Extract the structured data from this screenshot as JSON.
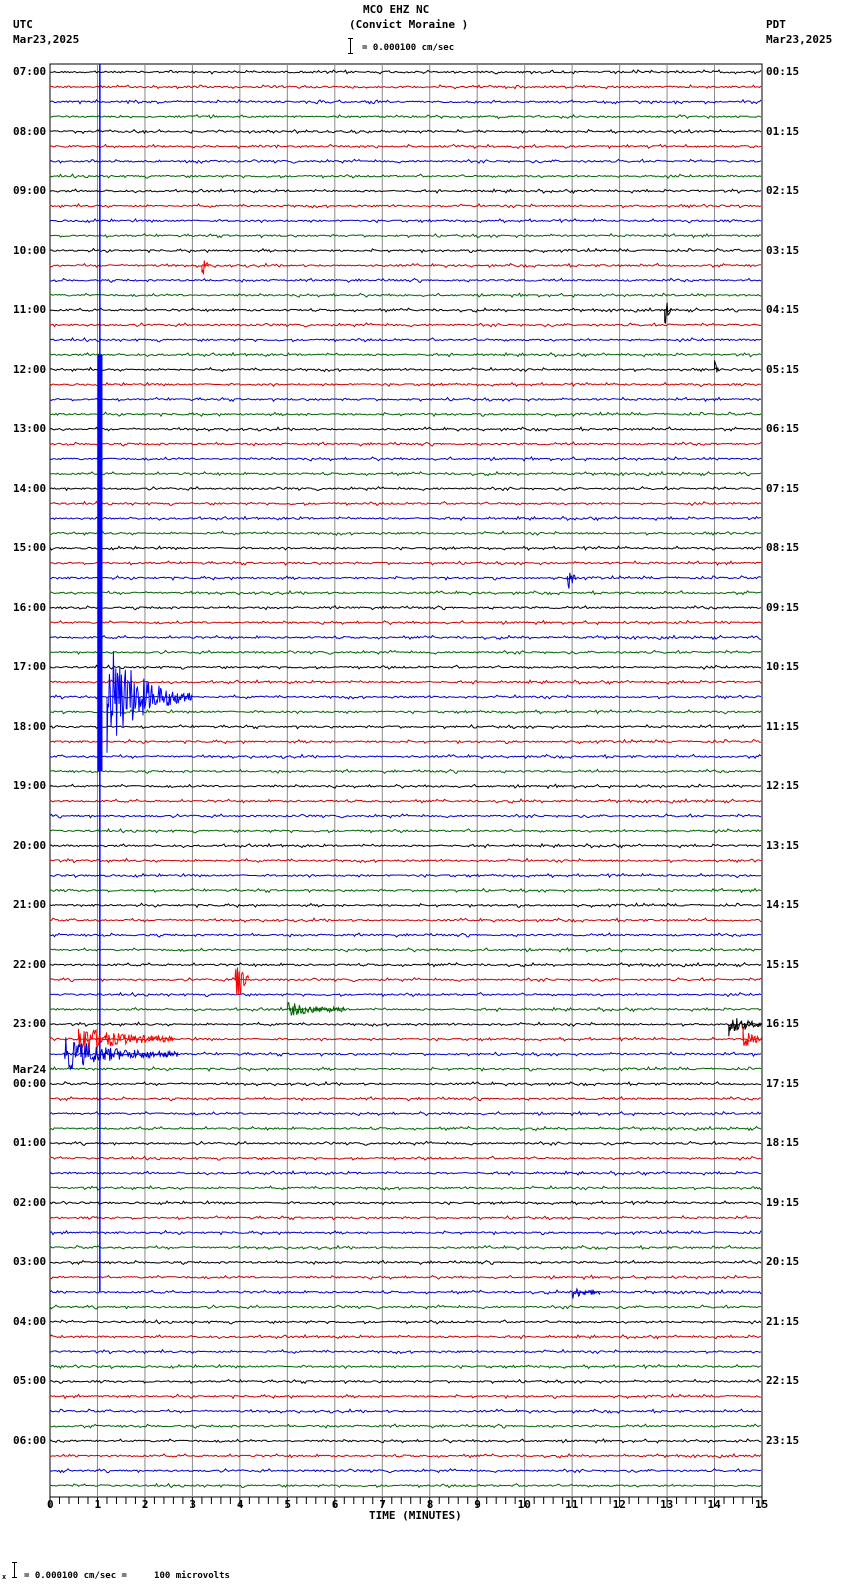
{
  "header": {
    "station": "MCO EHZ NC",
    "location": "(Convict Moraine )",
    "scale_label": "= 0.000100 cm/sec",
    "left_tz": "UTC",
    "left_date": "Mar23,2025",
    "right_tz": "PDT",
    "right_date": "Mar23,2025"
  },
  "footer": {
    "scale_prefix": "x",
    "scale_text": "= 0.000100 cm/sec =     100 microvolts"
  },
  "colors": {
    "trace_cycle": [
      "#000000",
      "#cc0000",
      "#0000cc",
      "#006600"
    ],
    "grid": "#888888",
    "event_blue": "#0000ff",
    "event_red": "#ff0000"
  },
  "chart_data": {
    "type": "line",
    "title": "MCO EHZ NC (Convict Moraine )",
    "xlabel": "TIME (MINUTES)",
    "ylabel": "",
    "x_ticks": [
      "0",
      "1",
      "2",
      "3",
      "4",
      "5",
      "6",
      "7",
      "8",
      "9",
      "10",
      "11",
      "12",
      "13",
      "14",
      "15"
    ],
    "xlim": [
      0,
      15
    ],
    "grid": true,
    "traces_per_hour": 4,
    "trace_interval_minutes": 15,
    "left_labels": [
      {
        "row": 0,
        "text": "07:00"
      },
      {
        "row": 4,
        "text": "08:00"
      },
      {
        "row": 8,
        "text": "09:00"
      },
      {
        "row": 12,
        "text": "10:00"
      },
      {
        "row": 16,
        "text": "11:00"
      },
      {
        "row": 20,
        "text": "12:00"
      },
      {
        "row": 24,
        "text": "13:00"
      },
      {
        "row": 28,
        "text": "14:00"
      },
      {
        "row": 32,
        "text": "15:00"
      },
      {
        "row": 36,
        "text": "16:00"
      },
      {
        "row": 40,
        "text": "17:00"
      },
      {
        "row": 44,
        "text": "18:00"
      },
      {
        "row": 48,
        "text": "19:00"
      },
      {
        "row": 52,
        "text": "20:00"
      },
      {
        "row": 56,
        "text": "21:00"
      },
      {
        "row": 60,
        "text": "22:00"
      },
      {
        "row": 64,
        "text": "23:00"
      },
      {
        "row": 68,
        "text": "00:00",
        "date": "Mar24"
      },
      {
        "row": 72,
        "text": "01:00"
      },
      {
        "row": 76,
        "text": "02:00"
      },
      {
        "row": 80,
        "text": "03:00"
      },
      {
        "row": 84,
        "text": "04:00"
      },
      {
        "row": 88,
        "text": "05:00"
      },
      {
        "row": 92,
        "text": "06:00"
      }
    ],
    "right_labels": [
      "00:15",
      "01:15",
      "02:15",
      "03:15",
      "04:15",
      "05:15",
      "06:15",
      "07:15",
      "08:15",
      "09:15",
      "10:15",
      "11:15",
      "12:15",
      "13:15",
      "14:15",
      "15:15",
      "16:15",
      "17:15",
      "18:15",
      "19:15",
      "20:15",
      "21:15",
      "22:15",
      "23:15"
    ],
    "total_rows": 96,
    "events": [
      {
        "row": 13,
        "minute": 3.2,
        "amp": 14,
        "dur": 0.15,
        "desc": "small red spike ~10:15"
      },
      {
        "row": 16,
        "minute": 12.95,
        "amp": 16,
        "dur": 0.15,
        "desc": "black spike ~11:00"
      },
      {
        "row": 20,
        "minute": 14.0,
        "amp": 8,
        "dur": 0.1,
        "desc": "black spike ~12:00"
      },
      {
        "row": 34,
        "minute": 10.9,
        "amp": 16,
        "dur": 0.2,
        "desc": "blue/green spike ~15:30"
      },
      {
        "row": 42,
        "minute": 1.2,
        "amp": 60,
        "dur": 1.8,
        "desc": "large teleseismic earthquake, blue"
      },
      {
        "row": 61,
        "minute": 3.9,
        "amp": 40,
        "dur": 0.3,
        "desc": "red local event ~22:15"
      },
      {
        "row": 63,
        "minute": 5.0,
        "amp": 6,
        "dur": 1.2,
        "desc": "green coda ~22:45"
      },
      {
        "row": 64,
        "minute": 14.3,
        "amp": 10,
        "dur": 1.0,
        "desc": "black noise burst ~23:00"
      },
      {
        "row": 65,
        "minute": 0.6,
        "amp": 14,
        "dur": 2.0,
        "desc": "red noise ~23:15"
      },
      {
        "row": 65,
        "minute": 14.6,
        "amp": 12,
        "dur": 0.7,
        "desc": "red noise burst end ~23:15"
      },
      {
        "row": 66,
        "minute": 0.3,
        "amp": 16,
        "dur": 2.4,
        "desc": "blue noise ~23:30"
      },
      {
        "row": 82,
        "minute": 11.0,
        "amp": 5,
        "dur": 0.6,
        "desc": "blue burst ~03:30"
      }
    ],
    "long_vertical": {
      "minute": 1.05,
      "row_start": 0,
      "row_end": 82,
      "color": "#0000ff"
    }
  }
}
